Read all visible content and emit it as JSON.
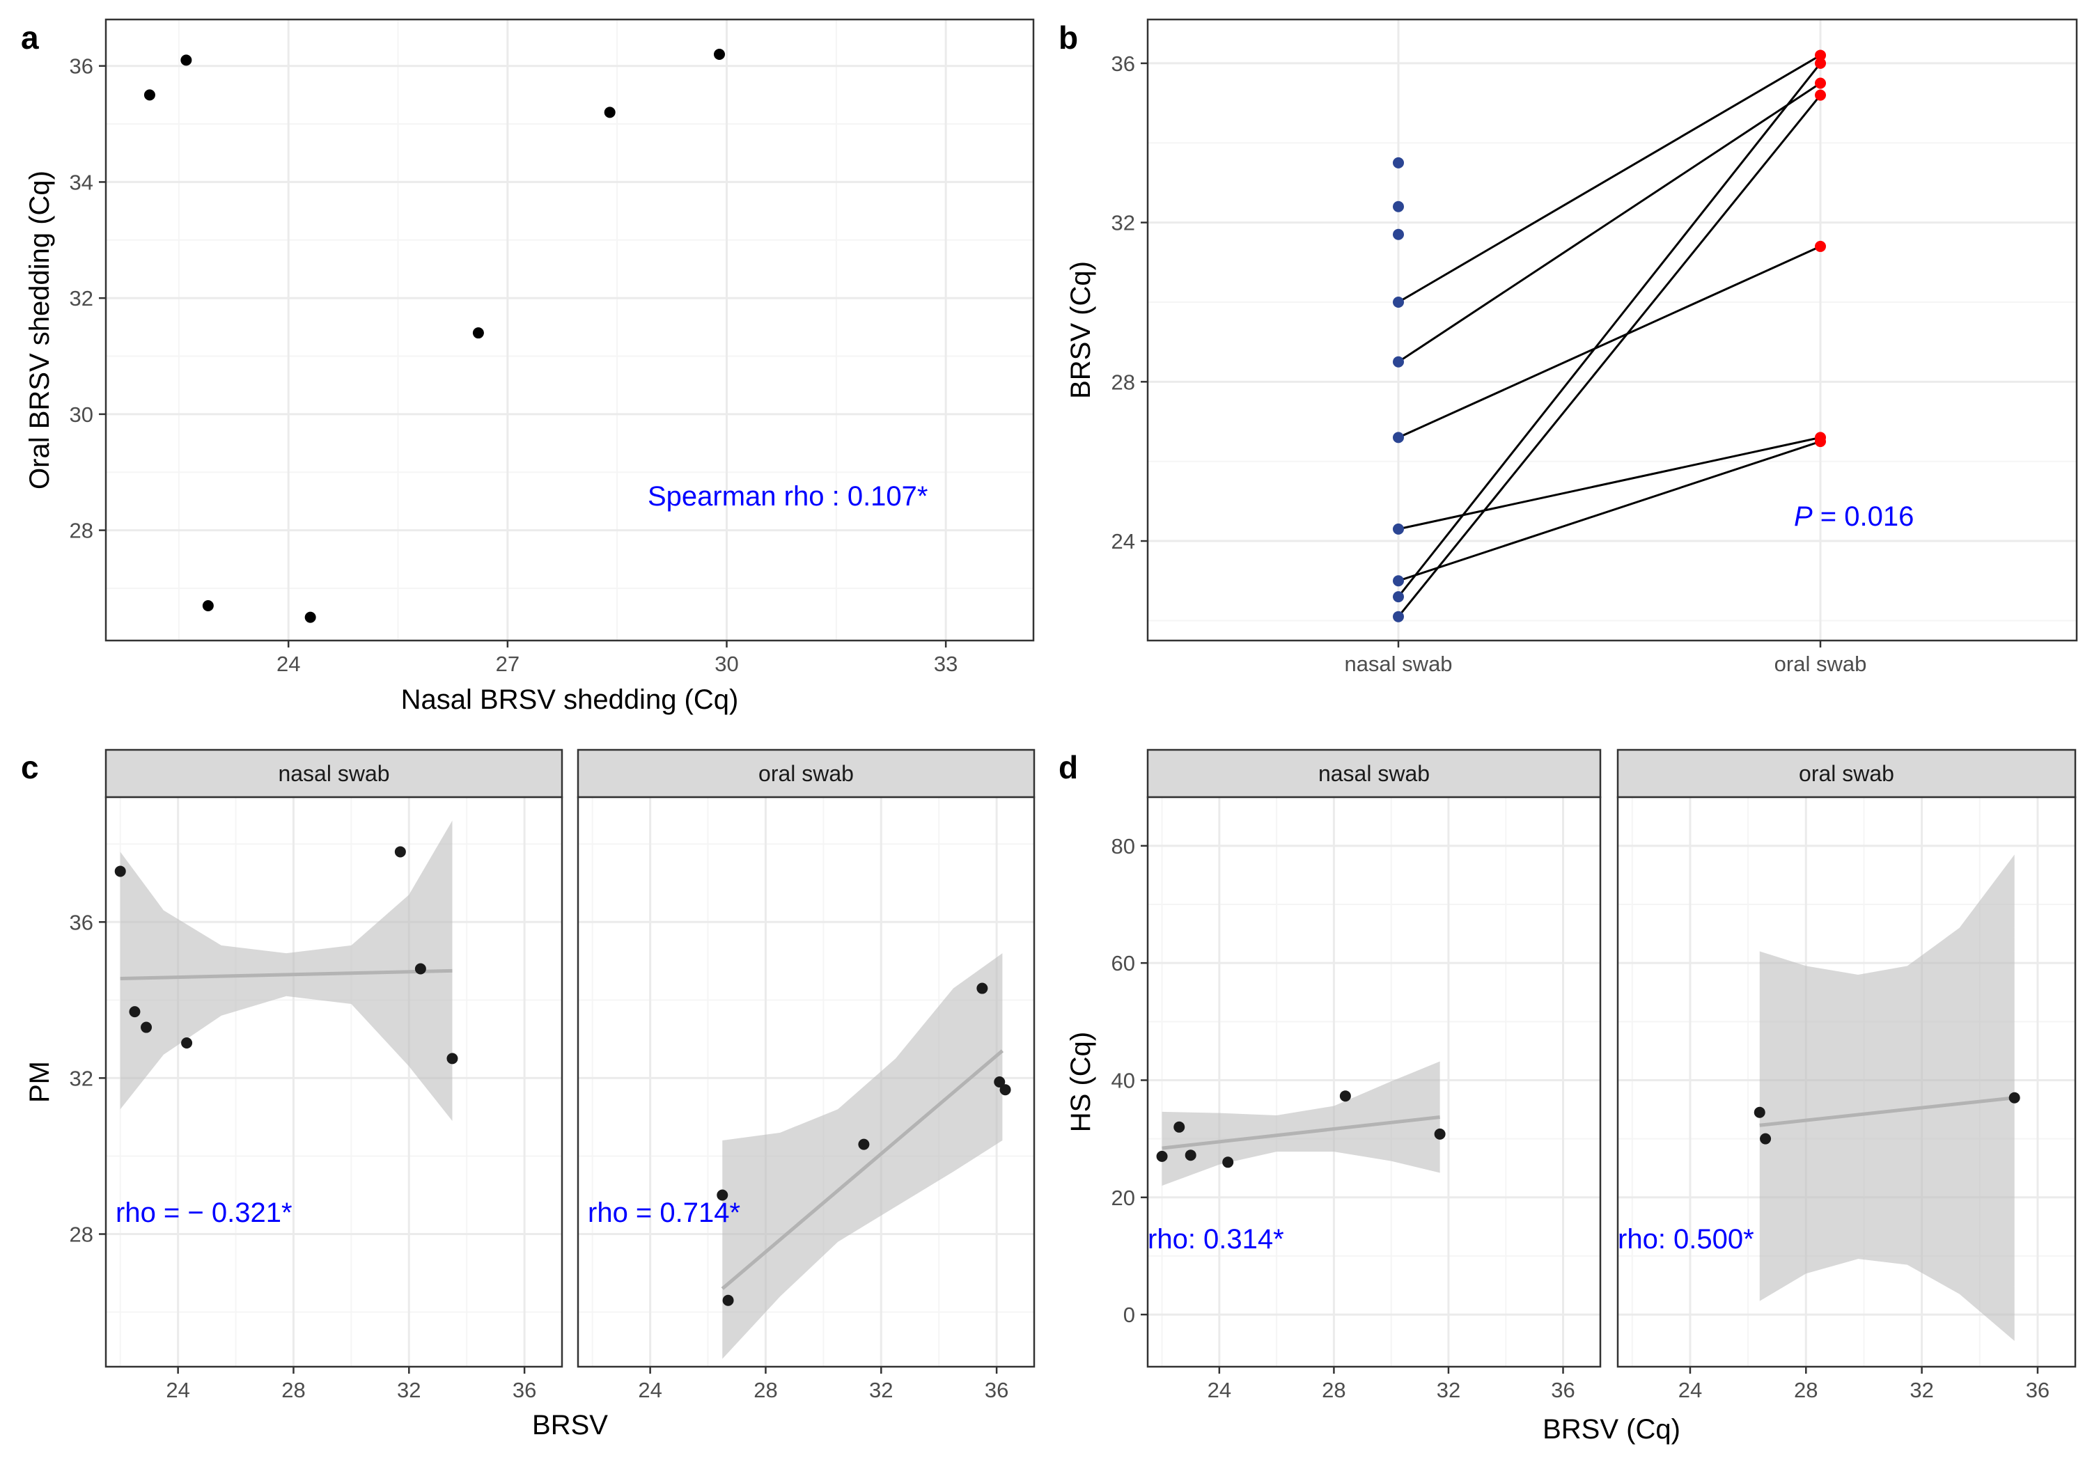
{
  "figure": {
    "panels": {
      "a": {
        "letter": "a"
      },
      "b": {
        "letter": "b"
      },
      "c": {
        "letter": "c"
      },
      "d": {
        "letter": "d"
      }
    }
  },
  "colors": {
    "panel_border": "#333333",
    "grid_major": "#ebebeb",
    "grid_minor": "#f5f5f5",
    "strip_fill": "#d9d9d9",
    "annotation": "#0000ff",
    "nasal_point": "#2b4593",
    "oral_point": "#ff0000",
    "point": "#000000",
    "ribbon": "#bebebe",
    "fit_line": "#b3b3b3"
  },
  "chart_data": [
    {
      "id": "a",
      "type": "scatter",
      "xlabel": "Nasal BRSV shedding (Cq)",
      "ylabel": "Oral BRSV shedding (Cq)",
      "xlim": [
        21.5,
        34.2
      ],
      "ylim": [
        26.1,
        36.8
      ],
      "xticks": [
        24,
        27,
        30,
        33
      ],
      "yticks": [
        28,
        30,
        32,
        34,
        36
      ],
      "points": [
        {
          "x": 22.1,
          "y": 35.5
        },
        {
          "x": 22.6,
          "y": 36.1
        },
        {
          "x": 22.9,
          "y": 26.7
        },
        {
          "x": 24.3,
          "y": 26.5
        },
        {
          "x": 26.6,
          "y": 31.4
        },
        {
          "x": 28.4,
          "y": 35.2
        },
        {
          "x": 29.9,
          "y": 36.2
        }
      ],
      "annotation": "Spearman rho : 0.107*"
    },
    {
      "id": "b",
      "type": "paired-dot",
      "ylabel": "BRSV (Cq)",
      "categories": [
        "nasal swab",
        "oral swab"
      ],
      "ylim": [
        21.5,
        37.1
      ],
      "yticks": [
        24,
        28,
        32,
        36
      ],
      "nasal_only": [
        33.5,
        32.4,
        31.7
      ],
      "pairs": [
        {
          "nasal": 30.0,
          "oral": 36.2
        },
        {
          "nasal": 28.5,
          "oral": 35.5
        },
        {
          "nasal": 26.6,
          "oral": 31.4
        },
        {
          "nasal": 24.3,
          "oral": 26.6
        },
        {
          "nasal": 23.0,
          "oral": 26.5
        },
        {
          "nasal": 22.6,
          "oral": 36.0
        },
        {
          "nasal": 22.1,
          "oral": 35.2
        }
      ],
      "annotation": {
        "italic": "P",
        "rest": " = 0.016"
      }
    },
    {
      "id": "c",
      "type": "scatter-facet",
      "ylabel": "PM",
      "xlabel": "BRSV",
      "xlim": [
        21.5,
        37.3
      ],
      "ylim": [
        24.6,
        39.2
      ],
      "xticks": [
        24,
        28,
        32,
        36
      ],
      "yticks": [
        28,
        32,
        36
      ],
      "facets": [
        {
          "label": "nasal swab",
          "points": [
            {
              "x": 22.0,
              "y": 37.3
            },
            {
              "x": 22.5,
              "y": 33.7
            },
            {
              "x": 22.9,
              "y": 33.3
            },
            {
              "x": 24.3,
              "y": 32.9
            },
            {
              "x": 31.7,
              "y": 37.8
            },
            {
              "x": 32.4,
              "y": 34.8
            },
            {
              "x": 33.5,
              "y": 32.5
            }
          ],
          "fit": {
            "x0": 22.0,
            "x1": 33.5,
            "y0": 34.55,
            "y1": 34.75
          },
          "band_x": [
            22.0,
            23.5,
            25.5,
            27.75,
            30.0,
            32.0,
            33.5
          ],
          "band_upper": [
            37.8,
            36.3,
            35.4,
            35.2,
            35.4,
            36.7,
            38.6
          ],
          "band_lower": [
            31.2,
            32.6,
            33.6,
            34.1,
            33.9,
            32.3,
            30.9
          ],
          "annotation": "rho = − 0.321*"
        },
        {
          "label": "oral swab",
          "points": [
            {
              "x": 26.5,
              "y": 29.0
            },
            {
              "x": 26.7,
              "y": 26.3
            },
            {
              "x": 31.4,
              "y": 30.3
            },
            {
              "x": 35.5,
              "y": 34.3
            },
            {
              "x": 36.1,
              "y": 31.9
            },
            {
              "x": 36.3,
              "y": 31.7
            }
          ],
          "fit": {
            "x0": 26.5,
            "x1": 36.2,
            "y0": 26.6,
            "y1": 32.7
          },
          "band_x": [
            26.5,
            28.5,
            30.5,
            32.5,
            34.5,
            36.2
          ],
          "band_upper": [
            30.4,
            30.6,
            31.2,
            32.5,
            34.3,
            35.2
          ],
          "band_lower": [
            24.8,
            26.4,
            27.8,
            28.7,
            29.6,
            30.4
          ],
          "annotation": "rho = 0.714*"
        }
      ]
    },
    {
      "id": "d",
      "type": "scatter-facet",
      "ylabel": "HS (Cq)",
      "xlabel": "BRSV (Cq)",
      "xlim": [
        21.5,
        37.3
      ],
      "ylim": [
        -8.9,
        88.3
      ],
      "xticks": [
        24,
        28,
        32,
        36
      ],
      "yticks": [
        0,
        20,
        40,
        60,
        80
      ],
      "facets": [
        {
          "label": "nasal swab",
          "points": [
            {
              "x": 22.0,
              "y": 27.0
            },
            {
              "x": 22.6,
              "y": 32.0
            },
            {
              "x": 23.0,
              "y": 27.2
            },
            {
              "x": 24.3,
              "y": 26.0
            },
            {
              "x": 28.4,
              "y": 37.3
            },
            {
              "x": 31.7,
              "y": 30.8
            }
          ],
          "fit": {
            "x0": 22.0,
            "x1": 31.7,
            "y0": 28.4,
            "y1": 33.7
          },
          "band_x": [
            22.0,
            24.0,
            26.0,
            28.0,
            30.0,
            31.7
          ],
          "band_upper": [
            34.6,
            34.4,
            34.0,
            35.6,
            39.8,
            43.2
          ],
          "band_lower": [
            22.0,
            25.6,
            27.8,
            27.8,
            26.2,
            24.2
          ],
          "annotation": "rho: 0.314*"
        },
        {
          "label": "oral swab",
          "points": [
            {
              "x": 26.4,
              "y": 34.5
            },
            {
              "x": 26.6,
              "y": 30.0
            },
            {
              "x": 35.2,
              "y": 37.0
            }
          ],
          "fit": {
            "x0": 26.4,
            "x1": 35.2,
            "y0": 32.3,
            "y1": 37.0
          },
          "band_x": [
            26.4,
            28.0,
            29.8,
            31.5,
            33.3,
            35.2
          ],
          "band_upper": [
            62.0,
            59.5,
            58.0,
            59.5,
            66.0,
            78.5
          ],
          "band_lower": [
            2.3,
            7.0,
            9.5,
            8.5,
            3.5,
            -4.5
          ],
          "annotation": "rho: 0.500*"
        }
      ]
    }
  ]
}
